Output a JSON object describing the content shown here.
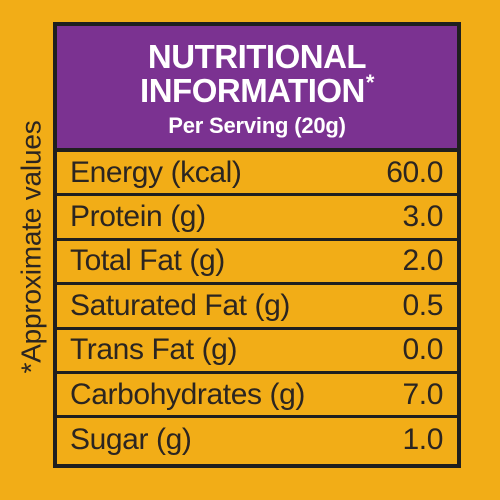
{
  "panel": {
    "title_line1": "NUTRITIONAL",
    "title_line2": "INFORMATION",
    "title_mark": "*",
    "serving_text": "Per Serving (20g)",
    "side_note": "*Approximate values"
  },
  "rows": [
    {
      "label": "Energy (kcal)",
      "value": "60.0"
    },
    {
      "label": "Protein (g)",
      "value": "3.0"
    },
    {
      "label": "Total Fat (g)",
      "value": "2.0"
    },
    {
      "label": "Saturated Fat (g)",
      "value": "0.5"
    },
    {
      "label": "Trans Fat (g)",
      "value": "0.0"
    },
    {
      "label": "Carbohydrates (g)",
      "value": "7.0"
    },
    {
      "label": "Sugar (g)",
      "value": "1.0"
    }
  ],
  "colors": {
    "background": "#f2ad17",
    "header": "#7b3291",
    "border": "#1f1f1f",
    "text": "#2b2521",
    "header_text": "#ffffff"
  }
}
